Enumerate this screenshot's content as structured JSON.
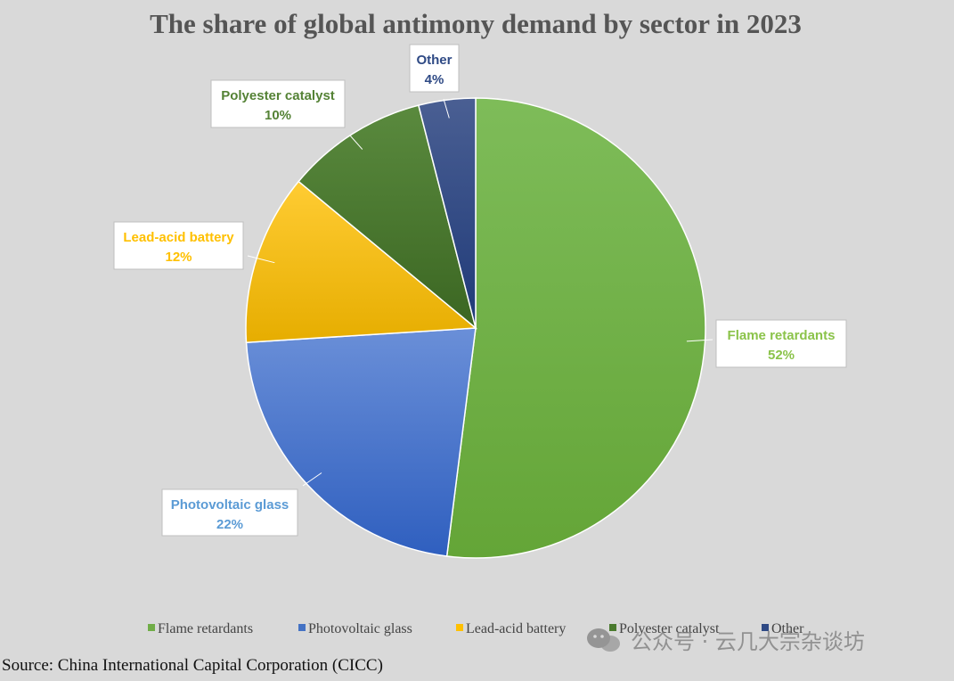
{
  "chart_data": {
    "type": "pie",
    "title": "The share of global antimony demand by sector in 2023",
    "slices": [
      {
        "label": "Flame retardants",
        "value": 52,
        "pct_label": "52%",
        "color": "#70ad47",
        "label_color": "#8bc34a"
      },
      {
        "label": "Photovoltaic glass",
        "value": 22,
        "pct_label": "22%",
        "color": "#4472c4",
        "label_color": "#5b9bd5"
      },
      {
        "label": "Lead-acid battery",
        "value": 12,
        "pct_label": "12%",
        "color": "#ffc000",
        "label_color": "#ffc000"
      },
      {
        "label": "Polyester catalyst",
        "value": 10,
        "pct_label": "10%",
        "color": "#4a7a2e",
        "label_color": "#548235"
      },
      {
        "label": "Other",
        "value": 4,
        "pct_label": "4%",
        "color": "#2f4a85",
        "label_color": "#2f4a85"
      }
    ],
    "legend": {
      "position": "bottom"
    }
  },
  "source_text": "Source: China International Capital Corporation (CICC)",
  "watermark_text": "公众号 · 云几大宗杂谈坊"
}
